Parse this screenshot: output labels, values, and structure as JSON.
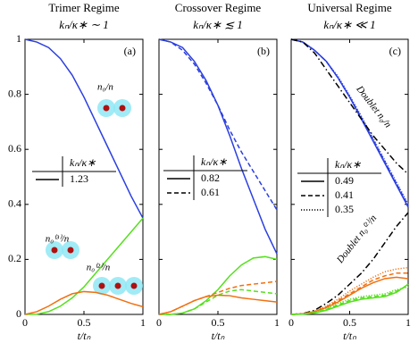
{
  "chart_data": [
    {
      "type": "line",
      "title": "Trimer Regime",
      "subtitle": "kₙ/κ∗ ∼ 1",
      "panel_label": "(a)",
      "xlabel": "t/tₙ",
      "x": [
        0,
        0.1,
        0.2,
        0.3,
        0.4,
        0.5,
        0.6,
        0.7,
        0.8,
        0.9,
        1
      ],
      "xlim": [
        0,
        1
      ],
      "ylim": [
        0,
        1
      ],
      "xticks": [
        0,
        0.5,
        1
      ],
      "yticks": [
        0,
        0.2,
        0.4,
        0.6,
        0.8,
        1
      ],
      "show_ytick_labels": true,
      "series": [
        {
          "color": "#2b3fe0",
          "dash": "solid",
          "values": [
            1,
            0.99,
            0.97,
            0.93,
            0.87,
            0.79,
            0.7,
            0.61,
            0.52,
            0.43,
            0.35
          ]
        },
        {
          "color": "#55e01c",
          "dash": "solid",
          "values": [
            0,
            0.001,
            0.01,
            0.03,
            0.06,
            0.1,
            0.15,
            0.2,
            0.25,
            0.3,
            0.35
          ]
        },
        {
          "color": "#f07010",
          "dash": "solid",
          "values": [
            0,
            0.01,
            0.03,
            0.055,
            0.075,
            0.083,
            0.08,
            0.07,
            0.055,
            0.04,
            0.028
          ]
        }
      ],
      "legend": {
        "title": "kₙ/κ∗",
        "entries": [
          {
            "label": "1.23",
            "dash": "solid"
          }
        ]
      },
      "annotations": [
        "n₀/n",
        "n₀⁽³⁾/n",
        "n₀⁽²⁾/n"
      ]
    },
    {
      "type": "line",
      "title": "Crossover Regime",
      "subtitle": "kₙ/κ∗ ≲ 1",
      "panel_label": "(b)",
      "xlabel": "t/tₙ",
      "x": [
        0,
        0.1,
        0.2,
        0.3,
        0.4,
        0.5,
        0.6,
        0.7,
        0.8,
        0.9,
        1
      ],
      "xlim": [
        0,
        1
      ],
      "ylim": [
        0,
        1
      ],
      "xticks": [
        0,
        0.5,
        1
      ],
      "yticks": [
        0,
        0.2,
        0.4,
        0.6,
        0.8,
        1
      ],
      "show_ytick_labels": false,
      "series": [
        {
          "color": "#2b3fe0",
          "dash": "solid",
          "values": [
            1,
            0.99,
            0.97,
            0.92,
            0.85,
            0.76,
            0.65,
            0.53,
            0.42,
            0.31,
            0.22
          ]
        },
        {
          "color": "#2b3fe0",
          "dash": "dashed",
          "values": [
            1,
            0.99,
            0.96,
            0.91,
            0.84,
            0.76,
            0.67,
            0.59,
            0.52,
            0.45,
            0.38
          ]
        },
        {
          "color": "#55e01c",
          "dash": "solid",
          "values": [
            0,
            0,
            0.005,
            0.02,
            0.05,
            0.09,
            0.14,
            0.18,
            0.205,
            0.21,
            0.2
          ]
        },
        {
          "color": "#55e01c",
          "dash": "dashed",
          "values": [
            0,
            0,
            0.005,
            0.02,
            0.045,
            0.07,
            0.085,
            0.09,
            0.085,
            0.08,
            0.075
          ]
        },
        {
          "color": "#f07010",
          "dash": "solid",
          "values": [
            0,
            0.01,
            0.03,
            0.05,
            0.065,
            0.07,
            0.068,
            0.06,
            0.055,
            0.05,
            0.045
          ]
        },
        {
          "color": "#f07010",
          "dash": "dashed",
          "values": [
            0,
            0.01,
            0.03,
            0.05,
            0.065,
            0.08,
            0.095,
            0.105,
            0.11,
            0.115,
            0.12
          ]
        }
      ],
      "legend": {
        "title": "kₙ/κ∗",
        "entries": [
          {
            "label": "0.82",
            "dash": "solid"
          },
          {
            "label": "0.61",
            "dash": "dashed"
          }
        ]
      },
      "annotations": []
    },
    {
      "type": "line",
      "title": "Universal Regime",
      "subtitle": "kₙ/κ∗ ≪ 1",
      "panel_label": "(c)",
      "xlabel": "t/tₙ",
      "x": [
        0,
        0.1,
        0.2,
        0.3,
        0.4,
        0.5,
        0.6,
        0.7,
        0.8,
        0.9,
        1
      ],
      "xlim": [
        0,
        1
      ],
      "ylim": [
        0,
        1
      ],
      "xticks": [
        0,
        0.5,
        1
      ],
      "yticks": [
        0,
        0.2,
        0.4,
        0.6,
        0.8,
        1
      ],
      "show_ytick_labels": false,
      "series": [
        {
          "color": "#2b3fe0",
          "dash": "solid",
          "values": [
            1,
            0.99,
            0.96,
            0.92,
            0.86,
            0.79,
            0.71,
            0.63,
            0.55,
            0.47,
            0.39
          ]
        },
        {
          "color": "#2b3fe0",
          "dash": "dashed",
          "values": [
            1,
            0.99,
            0.96,
            0.92,
            0.86,
            0.79,
            0.715,
            0.635,
            0.555,
            0.475,
            0.395
          ]
        },
        {
          "color": "#2b3fe0",
          "dash": "dotted",
          "values": [
            1,
            0.99,
            0.96,
            0.92,
            0.865,
            0.795,
            0.72,
            0.64,
            0.56,
            0.48,
            0.4
          ]
        },
        {
          "color": "#000000",
          "dash": "dashdot",
          "values": [
            1,
            0.99,
            0.95,
            0.89,
            0.83,
            0.77,
            0.71,
            0.65,
            0.6,
            0.55,
            0.51
          ]
        },
        {
          "color": "#000000",
          "dash": "dashdot",
          "values": [
            0,
            0.003,
            0.015,
            0.04,
            0.07,
            0.11,
            0.15,
            0.2,
            0.26,
            0.32,
            0.37
          ]
        },
        {
          "color": "#f07010",
          "dash": "solid",
          "values": [
            0,
            0.002,
            0.01,
            0.025,
            0.045,
            0.07,
            0.095,
            0.115,
            0.13,
            0.135,
            0.13
          ]
        },
        {
          "color": "#f07010",
          "dash": "dashed",
          "values": [
            0,
            0.002,
            0.01,
            0.027,
            0.05,
            0.075,
            0.1,
            0.125,
            0.14,
            0.15,
            0.15
          ]
        },
        {
          "color": "#f07010",
          "dash": "dotted",
          "values": [
            0,
            0.002,
            0.012,
            0.03,
            0.055,
            0.085,
            0.11,
            0.135,
            0.155,
            0.165,
            0.17
          ]
        },
        {
          "color": "#55e01c",
          "dash": "solid",
          "values": [
            0,
            0.001,
            0.005,
            0.015,
            0.03,
            0.045,
            0.055,
            0.06,
            0.065,
            0.08,
            0.11
          ]
        },
        {
          "color": "#55e01c",
          "dash": "dashed",
          "values": [
            0,
            0.001,
            0.006,
            0.018,
            0.035,
            0.05,
            0.06,
            0.065,
            0.07,
            0.085,
            0.105
          ]
        },
        {
          "color": "#55e01c",
          "dash": "dotted",
          "values": [
            0,
            0.001,
            0.007,
            0.02,
            0.04,
            0.055,
            0.065,
            0.07,
            0.075,
            0.09,
            0.1
          ]
        }
      ],
      "legend": {
        "title": "kₙ/κ∗",
        "entries": [
          {
            "label": "0.49",
            "dash": "solid"
          },
          {
            "label": "0.41",
            "dash": "dashed"
          },
          {
            "label": "0.35",
            "dash": "dotted"
          }
        ]
      },
      "annotations": [
        "Doublet n₀/n",
        "Doublet n₀⁽²⁾/n"
      ]
    }
  ]
}
